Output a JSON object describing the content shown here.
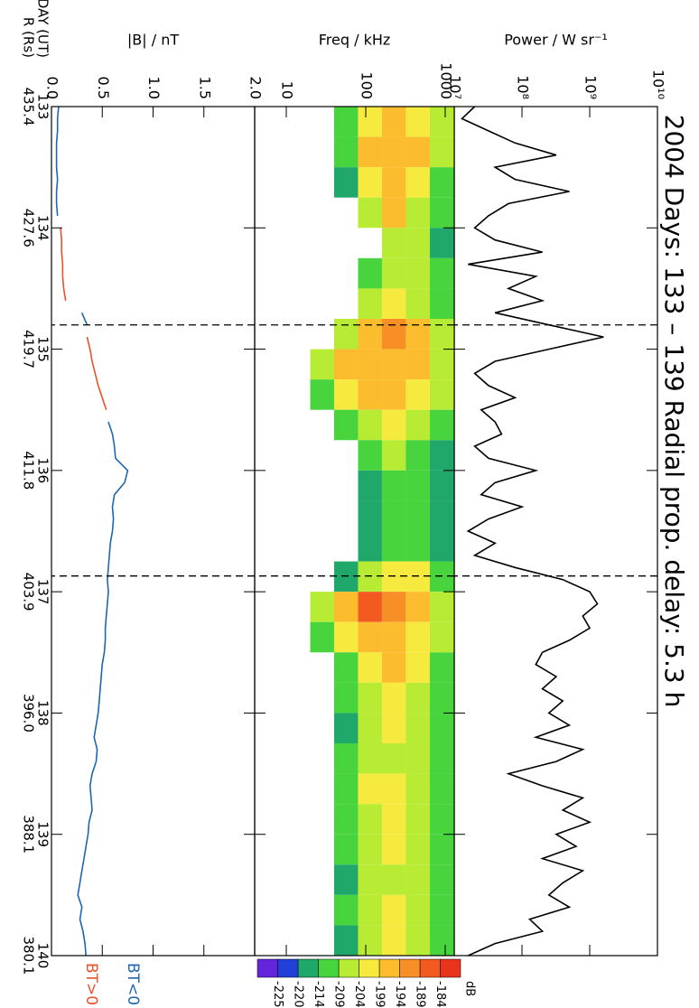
{
  "chart_data": [
    {
      "type": "line",
      "title": "2004 Days: 133 – 139 Radial prop. delay: 5.3 h",
      "ylabel": "Power / W sr⁻¹",
      "log_y": true,
      "xlim": [
        133,
        140
      ],
      "ylim": [
        10000000.0,
        10000000000.0
      ],
      "yticks": [
        {
          "value": 10000000.0,
          "label": "10⁷"
        },
        {
          "value": 100000000.0,
          "label": "10⁸"
        },
        {
          "value": 1000000000.0,
          "label": "10⁹"
        },
        {
          "value": 10000000000.0,
          "label": "10¹⁰"
        }
      ],
      "vlines": [
        134.8,
        136.87
      ],
      "x": [
        133,
        133.1,
        133.2,
        133.3,
        133.4,
        133.5,
        133.6,
        133.7,
        133.8,
        133.9,
        134,
        134.1,
        134.2,
        134.3,
        134.4,
        134.5,
        134.6,
        134.7,
        134.8,
        134.9,
        135,
        135.1,
        135.2,
        135.3,
        135.4,
        135.5,
        135.6,
        135.7,
        135.8,
        135.9,
        136,
        136.1,
        136.2,
        136.3,
        136.4,
        136.5,
        136.6,
        136.7,
        136.8,
        136.9,
        137,
        137.1,
        137.2,
        137.3,
        137.4,
        137.5,
        137.6,
        137.7,
        137.8,
        137.9,
        138,
        138.1,
        138.2,
        138.3,
        138.4,
        138.5,
        138.6,
        138.7,
        138.8,
        138.9,
        139,
        139.1,
        139.2,
        139.3,
        139.4,
        139.5,
        139.6,
        139.7,
        139.8,
        139.9,
        140
      ],
      "series": [
        {
          "color": "#000000",
          "values": [
            20000000.0,
            13000000.0,
            32000000.0,
            79000000.0,
            320000000.0,
            40000000.0,
            79000000.0,
            500000000.0,
            63000000.0,
            32000000.0,
            20000000.0,
            40000000.0,
            200000000.0,
            16000000.0,
            160000000.0,
            63000000.0,
            200000000.0,
            40000000.0,
            250000000.0,
            1600000000.0,
            250000000.0,
            40000000.0,
            20000000.0,
            32000000.0,
            79000000.0,
            25000000.0,
            40000000.0,
            50000000.0,
            20000000.0,
            32000000.0,
            160000000.0,
            40000000.0,
            25000000.0,
            100000000.0,
            32000000.0,
            16000000.0,
            40000000.0,
            20000000.0,
            79000000.0,
            400000000.0,
            1000000000.0,
            1300000000.0,
            790000000.0,
            1000000000.0,
            500000000.0,
            200000000.0,
            160000000.0,
            320000000.0,
            200000000.0,
            400000000.0,
            250000000.0,
            500000000.0,
            160000000.0,
            790000000.0,
            320000000.0,
            63000000.0,
            200000000.0,
            790000000.0,
            400000000.0,
            1000000000.0,
            320000000.0,
            630000000.0,
            200000000.0,
            790000000.0,
            400000000.0,
            250000000.0,
            500000000.0,
            130000000.0,
            200000000.0,
            40000000.0,
            16000000.0
          ]
        }
      ]
    },
    {
      "type": "heatmap",
      "ylabel": "Freq / kHz",
      "log_y": true,
      "xlim": [
        133,
        140
      ],
      "ylim": [
        4,
        1300
      ],
      "yticks": [
        10,
        100,
        1000
      ],
      "vlines": [
        134.8,
        136.87
      ],
      "x_edges": [
        133,
        133.25,
        133.5,
        133.75,
        134,
        134.25,
        134.5,
        134.75,
        135,
        135.25,
        135.5,
        135.75,
        136,
        136.25,
        136.5,
        136.75,
        137,
        137.25,
        137.5,
        137.75,
        138,
        138.25,
        138.5,
        138.75,
        139,
        139.25,
        139.5,
        139.75,
        140
      ],
      "y_edges": [
        20,
        40,
        80,
        160,
        320,
        640,
        1300
      ],
      "values": [
        [
          null,
          -210,
          -200,
          -196,
          -200,
          -208
        ],
        [
          null,
          -212,
          -198,
          -194,
          -198,
          -206
        ],
        [
          null,
          -214,
          -200,
          -195,
          -199,
          -210
        ],
        [
          null,
          null,
          -205,
          -198,
          -204,
          -212
        ],
        [
          null,
          null,
          null,
          -206,
          -208,
          -214
        ],
        [
          null,
          null,
          -210,
          -204,
          -207,
          -213
        ],
        [
          null,
          null,
          -208,
          -202,
          -206,
          -212
        ],
        [
          null,
          -206,
          -196,
          -192,
          -196,
          -204
        ],
        [
          -206,
          -198,
          -194,
          -196,
          -198,
          -206
        ],
        [
          -210,
          -200,
          -196,
          -197,
          -200,
          -208
        ],
        [
          null,
          -212,
          -206,
          -203,
          -206,
          -212
        ],
        [
          null,
          null,
          -210,
          -208,
          -210,
          -215
        ],
        [
          null,
          null,
          -214,
          -210,
          -211,
          -216
        ],
        [
          null,
          null,
          -215,
          -211,
          -212,
          -216
        ],
        [
          null,
          null,
          -216,
          -212,
          -211,
          -217
        ],
        [
          null,
          -214,
          -204,
          -200,
          -203,
          -210
        ],
        [
          -208,
          -194,
          -188,
          -190,
          -196,
          -206
        ],
        [
          -212,
          -200,
          -194,
          -195,
          -199,
          -208
        ],
        [
          null,
          -210,
          -200,
          -198,
          -201,
          -209
        ],
        [
          null,
          -212,
          -204,
          -202,
          -204,
          -211
        ],
        [
          null,
          -214,
          -206,
          -203,
          -205,
          -212
        ],
        [
          null,
          -213,
          -207,
          -204,
          -206,
          -212
        ],
        [
          null,
          -210,
          -202,
          -200,
          -204,
          -211
        ],
        [
          null,
          -212,
          -205,
          -203,
          -205,
          -212
        ],
        [
          null,
          -213,
          -206,
          -203,
          -206,
          -212
        ],
        [
          null,
          -214,
          -207,
          -204,
          -205,
          -211
        ],
        [
          null,
          -212,
          -205,
          -202,
          -204,
          -211
        ],
        [
          null,
          -214,
          -206,
          -203,
          -206,
          -212
        ]
      ],
      "colorbar": {
        "label": "dB",
        "levels": [
          -184,
          -189,
          -194,
          -199,
          -204,
          -209,
          -214,
          -220,
          -225
        ],
        "colors": [
          "#e8341c",
          "#f25a20",
          "#f78e26",
          "#fbbd2e",
          "#f6ea3e",
          "#b8ec34",
          "#48d43c",
          "#20a86a",
          "#2040d8",
          "#6424dc"
        ]
      }
    },
    {
      "type": "line",
      "ylabel": "|B| / nT",
      "xlabel": "DAY (UT)",
      "xlabel2": "R (Rs)",
      "xlim": [
        133,
        140
      ],
      "ylim": [
        0,
        2
      ],
      "yticks": [
        {
          "value": 0,
          "label": "0.0"
        },
        {
          "value": 0.5,
          "label": "0.5"
        },
        {
          "value": 1,
          "label": "1.0"
        },
        {
          "value": 1.5,
          "label": "1.5"
        },
        {
          "value": 2,
          "label": "2.0"
        }
      ],
      "xticks": [
        133,
        134,
        135,
        136,
        137,
        138,
        139,
        140
      ],
      "xtick_labels2": [
        "435.4",
        "427.6",
        "419.7",
        "411.8",
        "403.9",
        "396.0",
        "388.1",
        "380.1"
      ],
      "vlines": [
        134.8,
        136.87
      ],
      "x": [
        133,
        133.1,
        133.2,
        133.3,
        133.4,
        133.5,
        133.6,
        133.7,
        133.8,
        133.9,
        134,
        134.1,
        134.2,
        134.3,
        134.4,
        134.5,
        134.6,
        134.7,
        134.8,
        134.9,
        135,
        135.1,
        135.2,
        135.3,
        135.4,
        135.5,
        135.6,
        135.7,
        135.8,
        135.9,
        136,
        136.1,
        136.2,
        136.3,
        136.4,
        136.5,
        136.6,
        136.7,
        136.8,
        136.9,
        137,
        137.1,
        137.2,
        137.3,
        137.4,
        137.5,
        137.6,
        137.7,
        137.8,
        137.9,
        138,
        138.1,
        138.2,
        138.3,
        138.4,
        138.5,
        138.6,
        138.7,
        138.8,
        138.9,
        139,
        139.1,
        139.2,
        139.3,
        139.4,
        139.5,
        139.6,
        139.7,
        139.8,
        139.9,
        140
      ],
      "series": [
        {
          "name": "BT<0",
          "color": "#1f66b0",
          "values": [
            0.07,
            0.06,
            0.06,
            0.05,
            0.05,
            0.05,
            0.06,
            0.05,
            0.05,
            0.06,
            null,
            null,
            null,
            null,
            null,
            null,
            null,
            0.3,
            0.35,
            null,
            null,
            null,
            null,
            null,
            null,
            null,
            0.56,
            0.6,
            0.62,
            0.63,
            0.75,
            0.72,
            0.62,
            0.6,
            0.61,
            0.6,
            0.58,
            0.57,
            0.56,
            0.55,
            0.56,
            0.55,
            0.54,
            0.53,
            0.53,
            0.52,
            0.5,
            0.49,
            0.48,
            0.47,
            0.46,
            0.44,
            0.42,
            0.45,
            0.44,
            0.4,
            0.38,
            0.39,
            0.4,
            0.37,
            0.36,
            0.34,
            0.32,
            0.3,
            0.28,
            0.26,
            0.3,
            0.28,
            0.31,
            0.33,
            0.34
          ]
        },
        {
          "name": "BT>0",
          "color": "#ea5128",
          "values": [
            null,
            null,
            null,
            null,
            null,
            null,
            null,
            null,
            null,
            null,
            0.09,
            0.1,
            0.1,
            0.11,
            0.11,
            0.12,
            0.14,
            null,
            null,
            0.35,
            0.38,
            0.4,
            0.43,
            0.46,
            0.5,
            0.54,
            null,
            null,
            null,
            null,
            null,
            null,
            null,
            null,
            null,
            null,
            null,
            null,
            null,
            null,
            null,
            null,
            null,
            null,
            null,
            null,
            null,
            null,
            null,
            null,
            null,
            null,
            null,
            null,
            null,
            null,
            null,
            null,
            null,
            null,
            null,
            null,
            null,
            null,
            null,
            null,
            null,
            null,
            null,
            null,
            null
          ]
        }
      ]
    }
  ]
}
